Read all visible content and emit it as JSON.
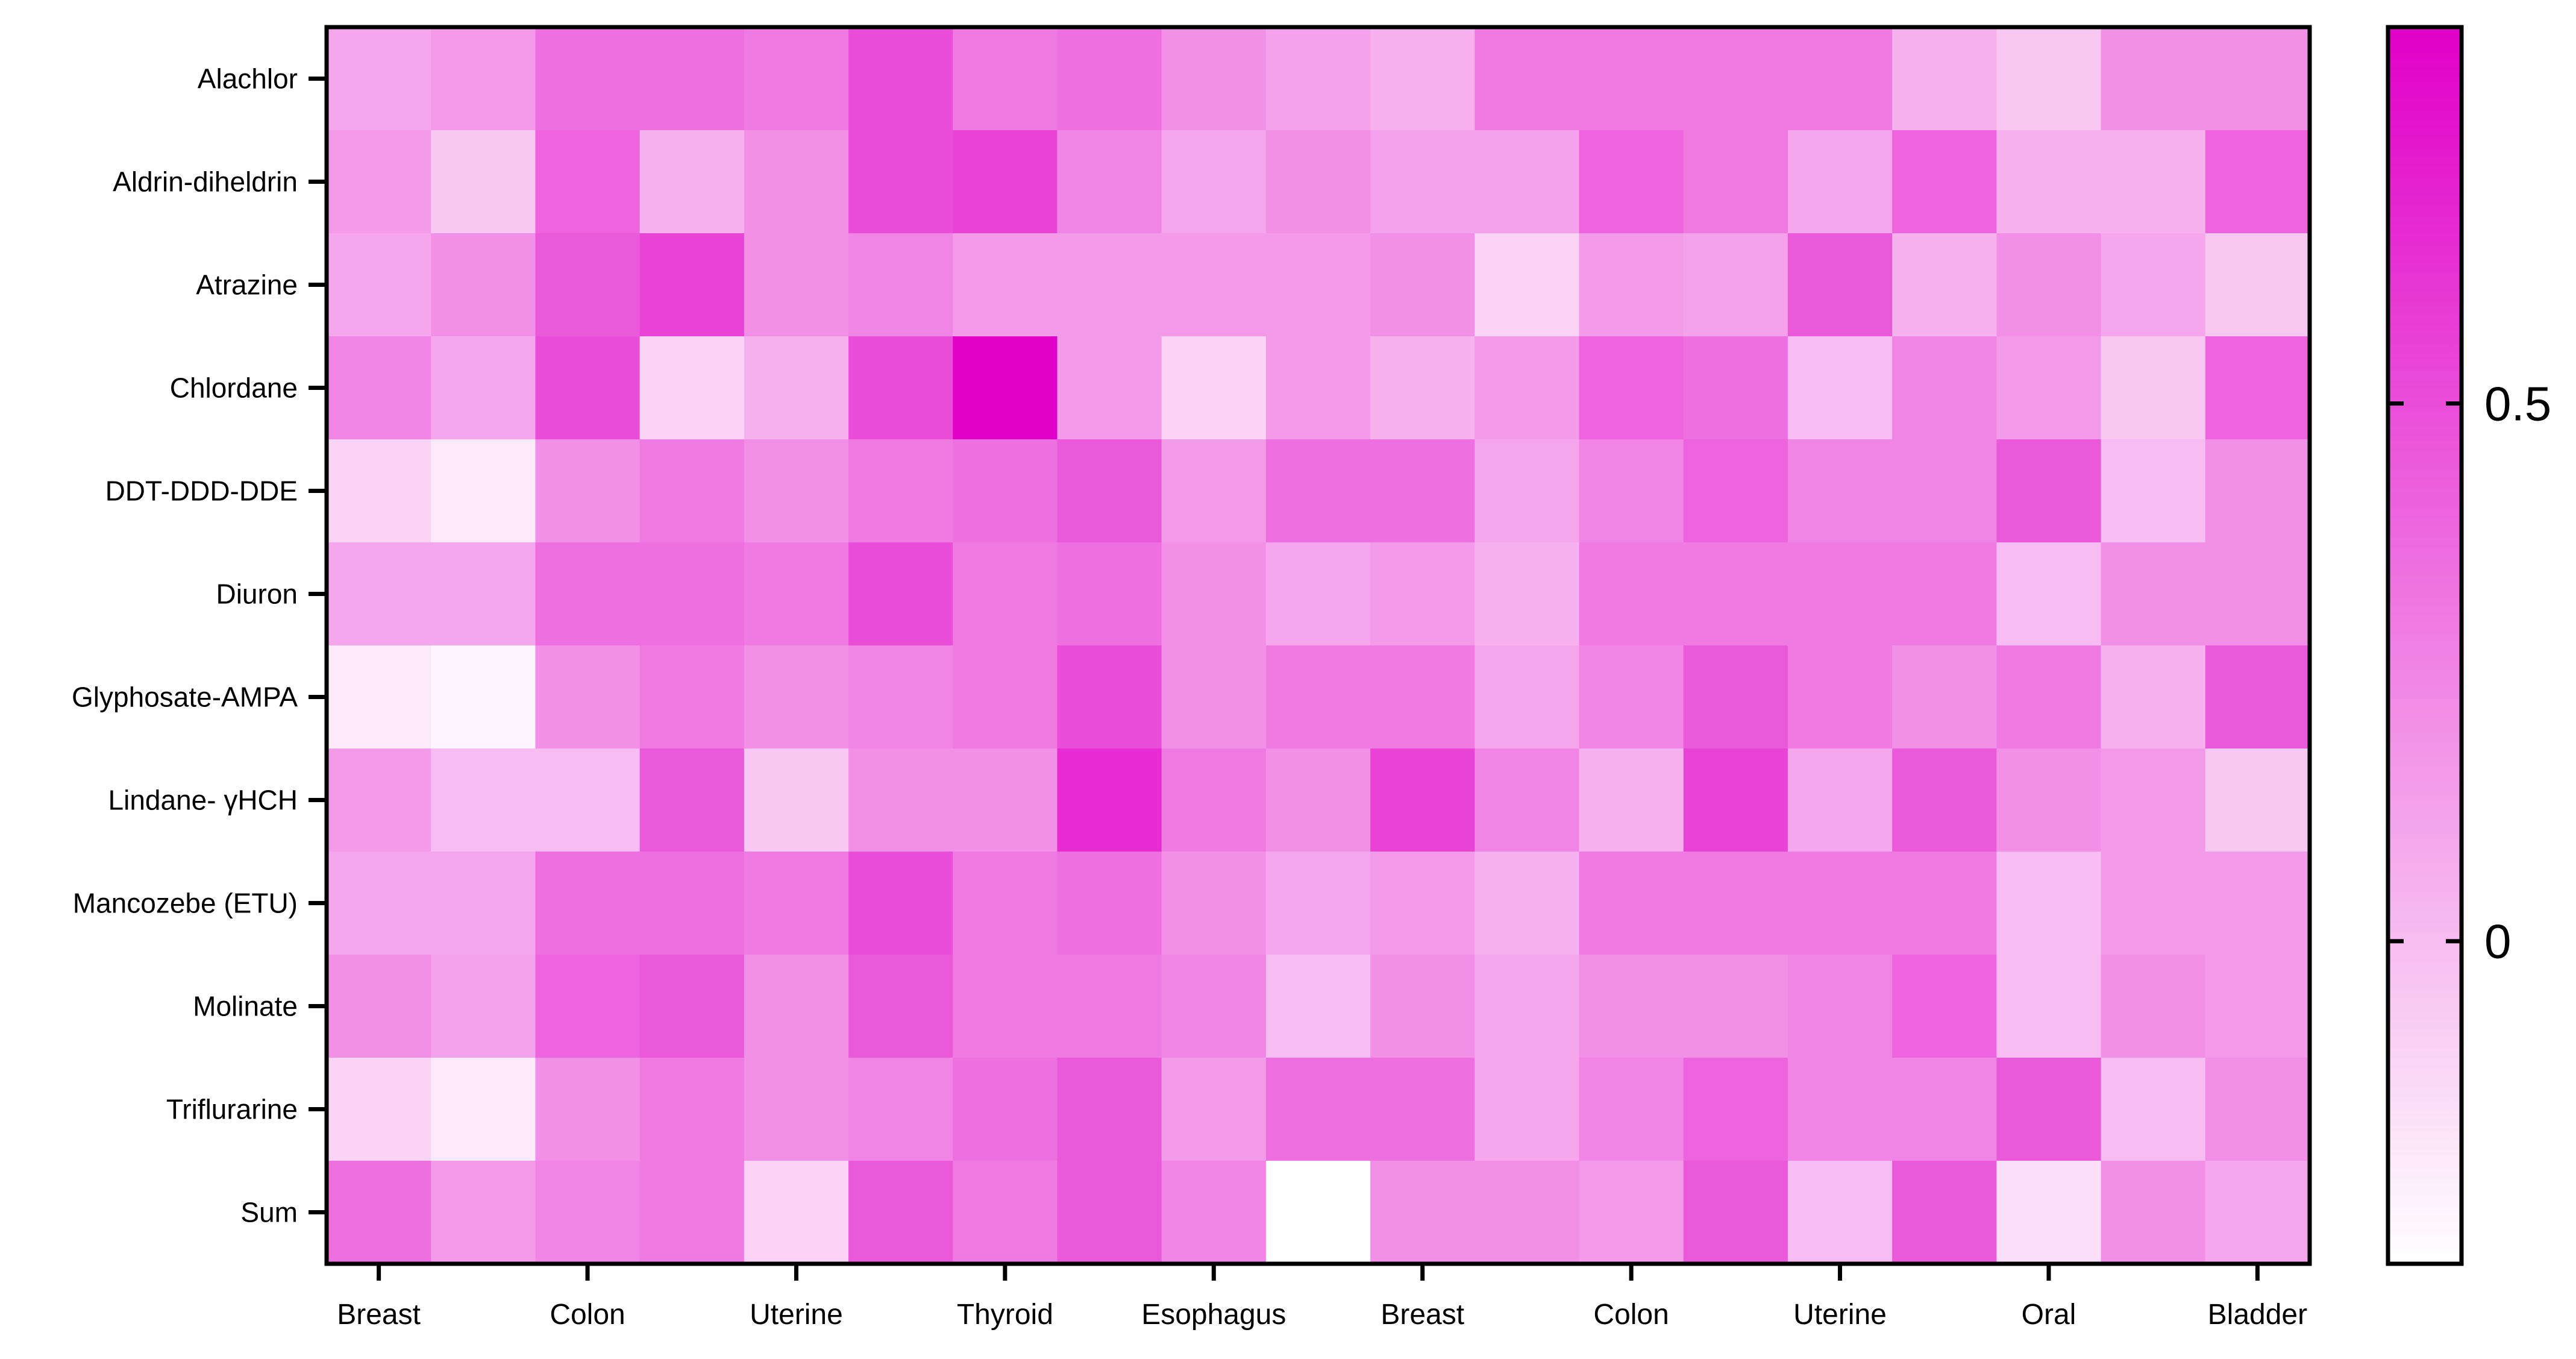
{
  "chart_data": {
    "type": "heatmap",
    "title": "",
    "xlabel": "",
    "ylabel": "",
    "rows": [
      "Alachlor",
      "Aldrin-diheldrin",
      "Atrazine",
      "Chlordane",
      "DDT-DDD-DDE",
      "Diuron",
      "Glyphosate-AMPA",
      "Lindane- γHCH",
      "Mancozebe (ETU)",
      "Molinate",
      "Triflurarine",
      "Sum"
    ],
    "column_ticks": [
      "Breast",
      "Colon",
      "Uterine",
      "Thyroid",
      "Esophagus",
      "Breast",
      "Colon",
      "Uterine",
      "Oral",
      "Bladder"
    ],
    "n_columns": 19,
    "values": [
      [
        0.1,
        0.15,
        0.35,
        0.35,
        0.3,
        0.5,
        0.3,
        0.35,
        0.2,
        0.12,
        0.05,
        0.3,
        0.3,
        0.3,
        0.3,
        0.05,
        -0.05,
        0.2,
        0.2
      ],
      [
        0.15,
        -0.05,
        0.4,
        0.05,
        0.2,
        0.5,
        0.55,
        0.25,
        0.1,
        0.2,
        0.12,
        0.12,
        0.4,
        0.3,
        0.1,
        0.4,
        0.05,
        0.05,
        0.4
      ],
      [
        0.1,
        0.2,
        0.45,
        0.55,
        0.2,
        0.25,
        0.15,
        0.15,
        0.15,
        0.15,
        0.2,
        -0.1,
        0.15,
        0.12,
        0.45,
        0.05,
        0.2,
        0.1,
        -0.05
      ],
      [
        0.25,
        0.1,
        0.5,
        -0.1,
        0.05,
        0.5,
        0.85,
        0.15,
        -0.1,
        0.15,
        0.05,
        0.15,
        0.4,
        0.35,
        0.0,
        0.25,
        0.15,
        -0.05,
        0.4
      ],
      [
        -0.1,
        -0.2,
        0.2,
        0.3,
        0.2,
        0.3,
        0.35,
        0.45,
        0.15,
        0.35,
        0.35,
        0.1,
        0.25,
        0.4,
        0.25,
        0.25,
        0.45,
        0.0,
        0.2
      ],
      [
        0.1,
        0.1,
        0.35,
        0.35,
        0.3,
        0.5,
        0.3,
        0.35,
        0.2,
        0.1,
        0.15,
        0.05,
        0.3,
        0.3,
        0.3,
        0.3,
        0.0,
        0.2,
        0.2
      ],
      [
        -0.2,
        -0.25,
        0.2,
        0.3,
        0.2,
        0.25,
        0.3,
        0.5,
        0.2,
        0.3,
        0.3,
        0.1,
        0.25,
        0.45,
        0.3,
        0.2,
        0.3,
        0.05,
        0.45
      ],
      [
        0.15,
        0.0,
        0.0,
        0.45,
        -0.05,
        0.2,
        0.2,
        0.65,
        0.3,
        0.2,
        0.55,
        0.25,
        0.05,
        0.55,
        0.1,
        0.45,
        0.2,
        0.15,
        -0.05
      ],
      [
        0.1,
        0.1,
        0.35,
        0.35,
        0.3,
        0.5,
        0.3,
        0.35,
        0.2,
        0.1,
        0.15,
        0.05,
        0.3,
        0.3,
        0.3,
        0.3,
        0.0,
        0.15,
        0.15
      ],
      [
        0.2,
        0.12,
        0.4,
        0.45,
        0.2,
        0.45,
        0.3,
        0.3,
        0.25,
        0.0,
        0.2,
        0.1,
        0.2,
        0.2,
        0.25,
        0.4,
        0.0,
        0.2,
        0.15
      ],
      [
        -0.1,
        -0.2,
        0.2,
        0.3,
        0.2,
        0.25,
        0.35,
        0.45,
        0.15,
        0.35,
        0.35,
        0.1,
        0.25,
        0.4,
        0.25,
        0.25,
        0.45,
        0.0,
        0.2
      ],
      [
        0.35,
        0.15,
        0.25,
        0.3,
        -0.1,
        0.45,
        0.3,
        0.45,
        0.25,
        -0.3,
        0.2,
        0.2,
        0.15,
        0.45,
        0.0,
        0.45,
        -0.15,
        0.2,
        0.1
      ]
    ],
    "colorbar": {
      "ticks": [
        0,
        0.5
      ],
      "tick_labels": [
        "0",
        "0.5"
      ],
      "range": [
        -0.3,
        0.85
      ],
      "low_color": "#ffffff",
      "high_color": "#e100c8"
    },
    "grid": false,
    "legend": "colorbar-right"
  }
}
